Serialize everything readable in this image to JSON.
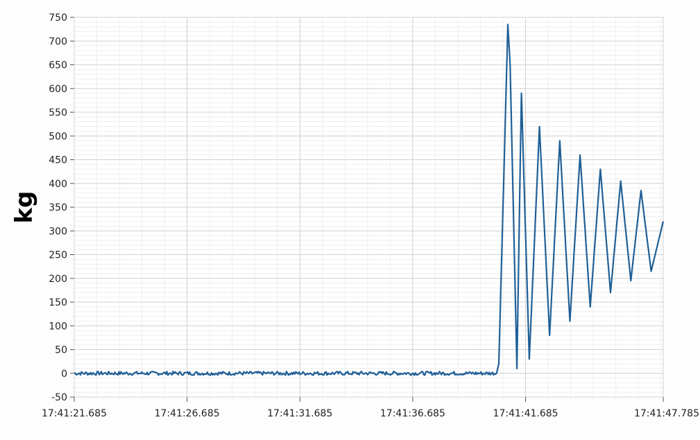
{
  "chart_data": {
    "type": "line",
    "title": "",
    "xlabel": "",
    "ylabel": "kg",
    "ylim": [
      -50,
      750
    ],
    "xlim_seconds_labels": [
      "17:41:21.685",
      "17:41:47.785"
    ],
    "y_ticks": [
      -50,
      0,
      50,
      100,
      150,
      200,
      250,
      300,
      350,
      400,
      450,
      500,
      550,
      600,
      650,
      700,
      750
    ],
    "x_ticks": [
      "17:41:21.685",
      "17:41:26.685",
      "17:41:31.685",
      "17:41:36.685",
      "17:41:41.685",
      "17:41:47.785"
    ],
    "grid": true,
    "series_color": "#1f5f96",
    "series": [
      {
        "name": "",
        "x": [
          "17:41:21.685",
          "17:41:40.400",
          "17:41:40.500",
          "17:41:40.900",
          "17:41:41.000",
          "17:41:41.300",
          "17:41:41.500",
          "17:41:41.850",
          "17:41:42.300",
          "17:41:42.750",
          "17:41:43.200",
          "17:41:43.650",
          "17:41:44.100",
          "17:41:44.550",
          "17:41:45.000",
          "17:41:45.450",
          "17:41:45.900",
          "17:41:46.350",
          "17:41:46.800",
          "17:41:47.250",
          "17:41:47.785"
        ],
        "values": [
          0,
          0,
          20,
          735,
          650,
          10,
          590,
          30,
          520,
          80,
          490,
          110,
          460,
          140,
          430,
          170,
          405,
          195,
          385,
          215,
          320
        ]
      }
    ]
  }
}
